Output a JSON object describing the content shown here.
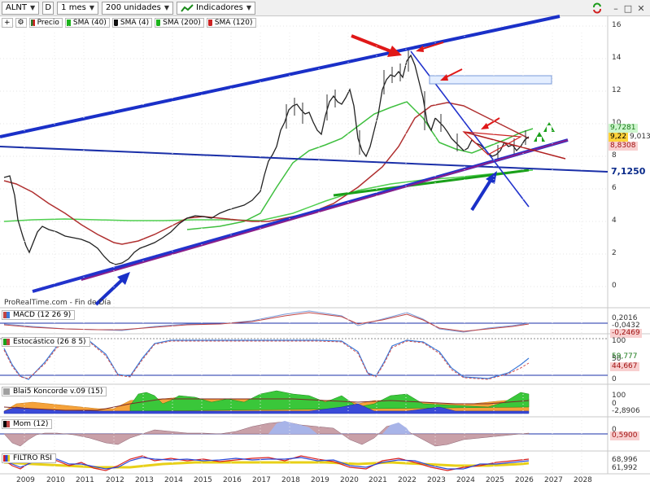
{
  "toolbar": {
    "symbol": "ALNT",
    "d_button": "D",
    "timeframe": "1 mes",
    "units": "200 unidades",
    "indicators": "Indicadores"
  },
  "legend": {
    "price": "Precio",
    "items": [
      {
        "label": "SMA (40)",
        "color": "#1db31d"
      },
      {
        "label": "SMA (4)",
        "color": "#111111"
      },
      {
        "label": "SMA (200)",
        "color": "#1db31d"
      },
      {
        "label": "SMA (120)",
        "color": "#cc2222"
      }
    ]
  },
  "price_axis": {
    "ticks": [
      "16",
      "14",
      "12",
      "10",
      "8",
      "6",
      "4",
      "2",
      "0"
    ],
    "tags": [
      {
        "text": "9,7281",
        "bg": "#ccf5cc",
        "color": "#1b7a1b"
      },
      {
        "text": "9,22",
        "bg": "#ffd23a",
        "color": "#000000"
      },
      {
        "text": "9,0130",
        "bg": "#ffffff",
        "color": "#333333"
      },
      {
        "text": "8,8308",
        "bg": "#f8d0d0",
        "color": "#a01010"
      },
      {
        "text": "7,1250",
        "bg": "#ffffff",
        "color": "#0a2a8a"
      }
    ]
  },
  "watermark": "ProRealTime.com - Fin de Día",
  "panes": {
    "macd": {
      "label": "MACD (12 26 9)",
      "tags": [
        {
          "text": "0,2016",
          "color": "#333333"
        },
        {
          "text": "-0,0432",
          "color": "#333333"
        },
        {
          "text": "-0,2469",
          "color": "#a01010"
        }
      ]
    },
    "stoch": {
      "label": "Estocástico (26 8 5)",
      "axis": [
        "100",
        "50",
        "0"
      ],
      "tags": [
        {
          "text": "59,777",
          "color": "#1b7a1b"
        },
        {
          "text": "44,667",
          "color": "#a01010"
        }
      ]
    },
    "koncorde": {
      "label": "Blai5 Koncorde v.09 (15)",
      "axis": [
        "100",
        "0"
      ],
      "tags": [
        {
          "text": "-2,8906",
          "color": "#333333"
        }
      ]
    },
    "mom": {
      "label": "Mom (12)",
      "axis": [
        "0"
      ],
      "tags": [
        {
          "text": "0,5900",
          "color": "#a01010"
        }
      ]
    },
    "rsi": {
      "label": "FILTRO RSI",
      "tags": [
        {
          "text": "68,996",
          "color": "#333333"
        },
        {
          "text": "61,992",
          "color": "#333333"
        }
      ]
    }
  },
  "time_axis": [
    "2009",
    "2010",
    "2011",
    "2012",
    "2013",
    "2014",
    "2015",
    "2016",
    "2017",
    "2018",
    "2019",
    "2020",
    "2021",
    "2022",
    "2023",
    "2024",
    "2025",
    "2026",
    "2027",
    "2028"
  ]
}
